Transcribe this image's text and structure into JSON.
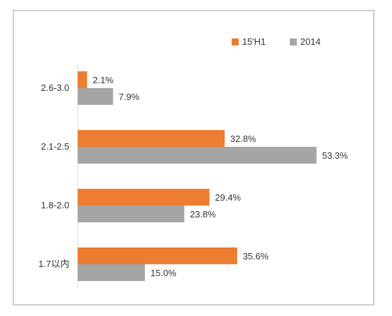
{
  "chart_data": {
    "type": "bar",
    "orientation": "horizontal",
    "categories": [
      "2.6-3.0",
      "2.1-2.5",
      "1.8-2.0",
      "1.7以内"
    ],
    "series": [
      {
        "name": "15'H1",
        "values": [
          2.1,
          32.8,
          29.4,
          35.6
        ],
        "labels": [
          "2.1%",
          "32.8%",
          "29.4%",
          "35.6%"
        ],
        "color": "#ED7D31"
      },
      {
        "name": "2014",
        "values": [
          7.9,
          53.3,
          23.8,
          15.0
        ],
        "labels": [
          "7.9%",
          "53.3%",
          "23.8%",
          "15.0%"
        ],
        "color": "#A5A5A5"
      }
    ],
    "xlim": [
      0,
      60
    ],
    "unit": "%",
    "grid": false,
    "legend_position": "top-right"
  }
}
